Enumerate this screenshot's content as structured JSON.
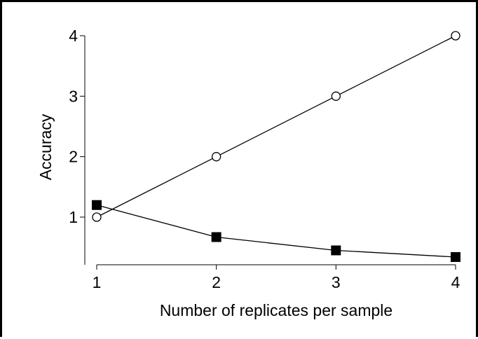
{
  "chart_data": {
    "type": "line",
    "title": "",
    "xlabel": "Number of replicates per sample",
    "ylabel": "Accuracy",
    "x": [
      1,
      2,
      3,
      4
    ],
    "xlim": [
      1,
      4
    ],
    "ylim": [
      0.25,
      4
    ],
    "xticks": [
      "1",
      "2",
      "3",
      "4"
    ],
    "yticks": [
      "1",
      "2",
      "3",
      "4"
    ],
    "grid": false,
    "legend": "none",
    "series": [
      {
        "marker": "open-circle",
        "color": "#000000",
        "values": [
          1.0,
          2.0,
          3.0,
          4.0
        ]
      },
      {
        "marker": "filled-square",
        "color": "#000000",
        "values": [
          1.2,
          0.67,
          0.45,
          0.34
        ]
      }
    ]
  }
}
